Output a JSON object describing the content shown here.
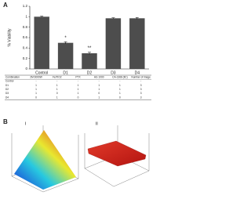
{
  "panel_a": {
    "label": "A"
  },
  "chart_data": {
    "type": "bar",
    "ylabel": "% Viability",
    "categories": [
      "Control",
      "D1",
      "D2",
      "D3",
      "D4"
    ],
    "values": [
      1.0,
      0.5,
      0.3,
      0.97,
      0.97
    ],
    "errors": [
      0.01,
      0.02,
      0.02,
      0.01,
      0.015
    ],
    "color": "#4d4d4d",
    "annotations": [
      {
        "label": "*",
        "x": "D1"
      },
      {
        "label": "**",
        "x": "D2"
      }
    ],
    "ylim": [
      0,
      1.2
    ],
    "yticks": [
      0,
      0.2,
      0.4,
      0.6,
      0.8,
      1,
      1.2
    ]
  },
  "table": {
    "header": [
      "Combination",
      "2M 6000W",
      "Fe/TiO2",
      "PTX",
      "AG 1000",
      "CA-1368 (tlC)",
      "Number of image"
    ],
    "rows": [
      [
        "Control",
        "-",
        "-",
        "-",
        "-",
        "-",
        "-"
      ],
      [
        "D1",
        "1",
        "1",
        "1",
        "1",
        "1",
        "3"
      ],
      [
        "D2",
        "1",
        "1",
        "1",
        "1",
        "1",
        "3"
      ],
      [
        "D3",
        "1",
        "0",
        "1",
        "0",
        "1",
        "3"
      ],
      [
        "D4",
        "0",
        "1",
        "0",
        "1",
        "0",
        "3"
      ]
    ]
  },
  "panel_b": {
    "label": "B",
    "subpanels": [
      "i",
      "ii"
    ]
  }
}
